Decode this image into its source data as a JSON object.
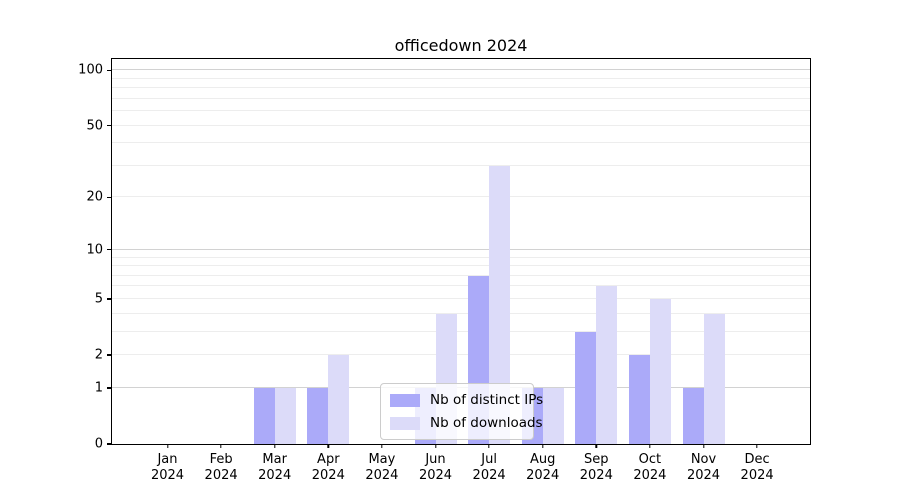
{
  "title": "officedown 2024",
  "chart_data": {
    "type": "bar",
    "title": "officedown 2024",
    "xlabel": "",
    "ylabel": "",
    "yscale": "log1p",
    "grid": "horizontal",
    "legend_position": "inside-bottom-center",
    "categories": [
      "Jan 2024",
      "Feb 2024",
      "Mar 2024",
      "Apr 2024",
      "May 2024",
      "Jun 2024",
      "Jul 2024",
      "Aug 2024",
      "Sep 2024",
      "Oct 2024",
      "Nov 2024",
      "Dec 2024"
    ],
    "series": [
      {
        "name": "Nb of distinct IPs",
        "color": "#abaaf9",
        "values": [
          0,
          0,
          1,
          1,
          0,
          1,
          7,
          1,
          3,
          2,
          1,
          0
        ]
      },
      {
        "name": "Nb of downloads",
        "color": "#dcdbf9",
        "values": [
          0,
          0,
          1,
          2,
          0,
          4,
          30,
          1,
          6,
          5,
          4,
          0
        ]
      }
    ],
    "yticks_labeled": [
      0,
      1,
      2,
      5,
      10,
      20,
      50,
      100
    ],
    "gridlines_major": [
      1,
      10,
      100
    ],
    "gridlines_minor": [
      2,
      3,
      4,
      5,
      6,
      7,
      8,
      9,
      20,
      30,
      40,
      50,
      60,
      70,
      80,
      90
    ],
    "ylim": [
      0,
      115
    ]
  },
  "colors": {
    "axis": "#000000",
    "grid_major": "#d2d2d2",
    "grid_minor": "#ededed",
    "legend_border": "#cccccc"
  }
}
